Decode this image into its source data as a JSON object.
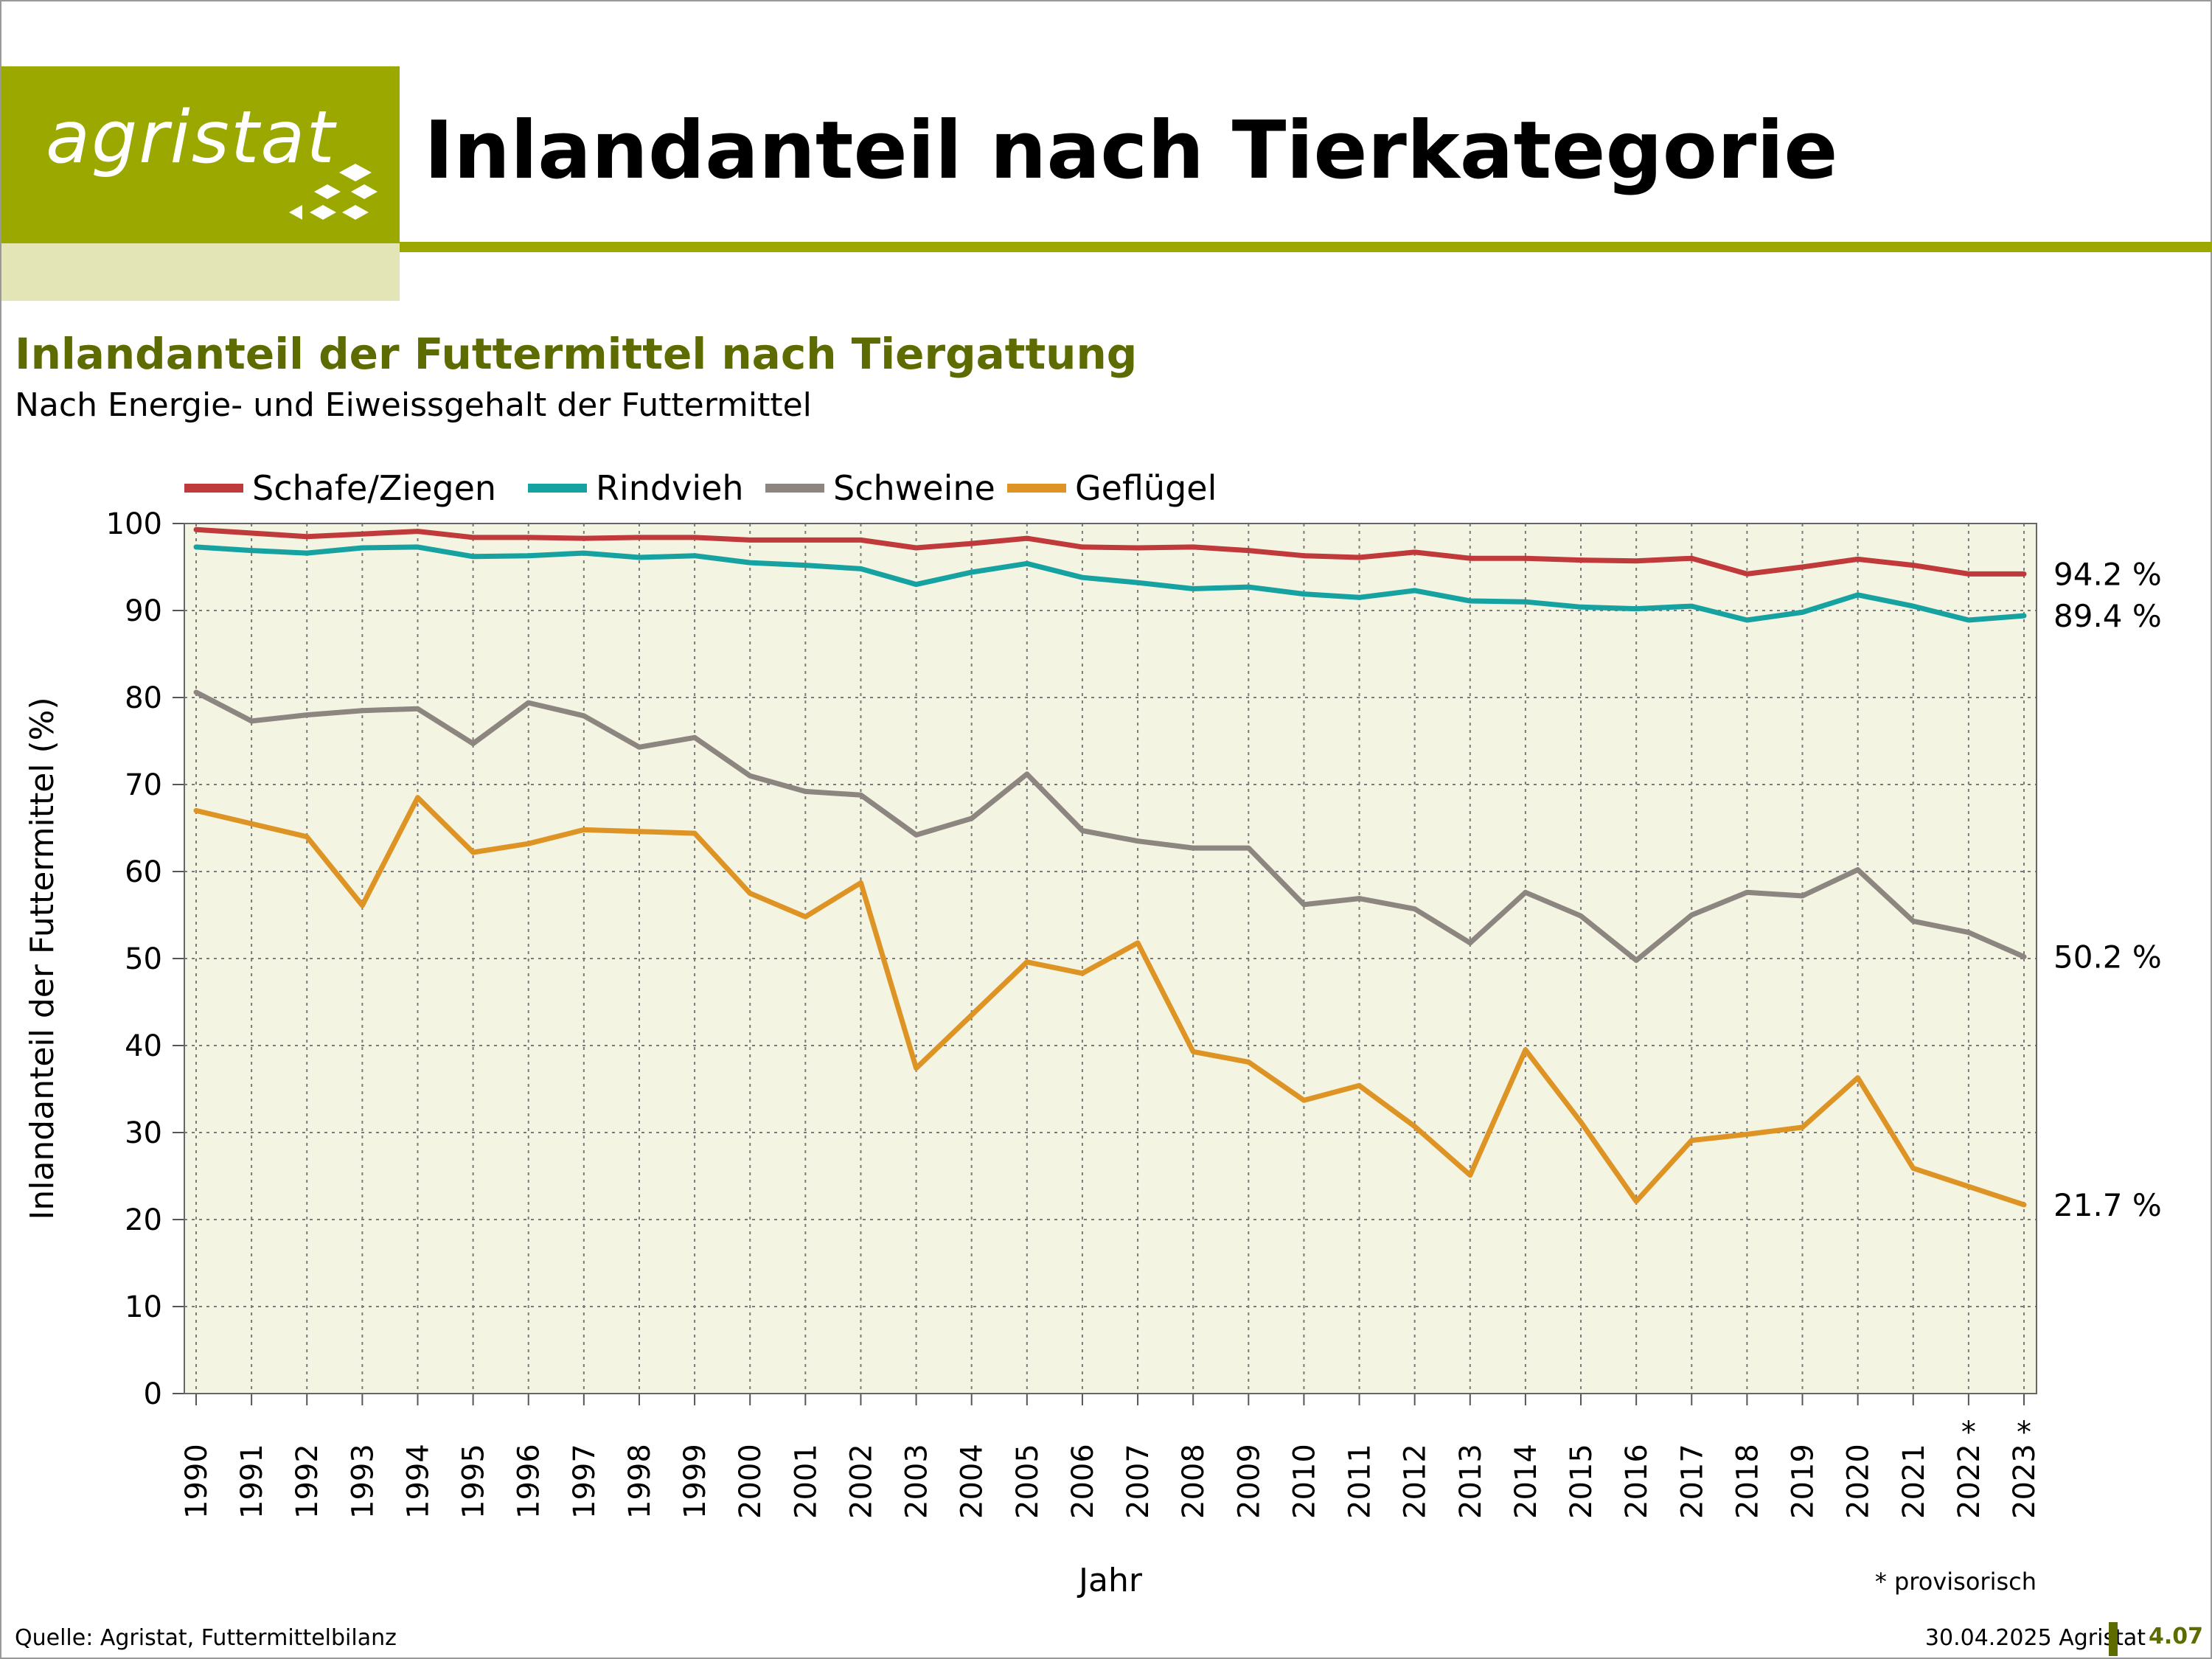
{
  "header": {
    "logo_text": "agristat",
    "page_title": "Inlandanteil nach Tierkategorie",
    "brand_color": "#9ba800"
  },
  "chart_title": "Inlandanteil der Futtermittel nach Tiergattung",
  "chart_subtitle": "Nach Energie- und Eiweissgehalt der Futtermittel",
  "note": "* provisorisch",
  "footer": {
    "source": "Quelle: Agristat, Futtermittelbilanz",
    "date": "30.04.2025 Agristat",
    "page": "4.07"
  },
  "chart_data": {
    "type": "line",
    "title": "Inlandanteil der Futtermittel nach Tiergattung",
    "subtitle": "Nach Energie- und Eiweissgehalt der Futtermittel",
    "xlabel": "Jahr",
    "ylabel": "Inlandanteil der Futtermittel (%)",
    "ylim": [
      0,
      100
    ],
    "yticks": [
      0,
      10,
      20,
      30,
      40,
      50,
      60,
      70,
      80,
      90,
      100
    ],
    "grid": true,
    "legend_position": "top",
    "background_color": "#f4f4e2",
    "x": [
      "1990",
      "1991",
      "1992",
      "1993",
      "1994",
      "1995",
      "1996",
      "1997",
      "1998",
      "1999",
      "2000",
      "2001",
      "2002",
      "2003",
      "2004",
      "2005",
      "2006",
      "2007",
      "2008",
      "2009",
      "2010",
      "2011",
      "2012",
      "2013",
      "2014",
      "2015",
      "2016",
      "2017",
      "2018",
      "2019",
      "2020",
      "2021",
      "2022",
      "2023"
    ],
    "provisional_marks": [
      "*",
      "*"
    ],
    "series": [
      {
        "name": "Schafe/Ziegen",
        "color": "#c0393b",
        "values": [
          99.3,
          98.9,
          98.5,
          98.8,
          99.1,
          98.4,
          98.4,
          98.3,
          98.4,
          98.4,
          98.1,
          98.1,
          98.1,
          97.2,
          97.7,
          98.3,
          97.3,
          97.2,
          97.3,
          96.9,
          96.3,
          96.1,
          96.7,
          96.0,
          96.0,
          95.8,
          95.7,
          96.0,
          94.2,
          95.0,
          95.9,
          95.2,
          94.2,
          94.2
        ],
        "end_label": "94.2 %"
      },
      {
        "name": "Rindvieh",
        "color": "#17a2a2",
        "values": [
          97.3,
          96.9,
          96.6,
          97.2,
          97.3,
          96.2,
          96.3,
          96.6,
          96.1,
          96.3,
          95.5,
          95.2,
          94.8,
          93.0,
          94.4,
          95.4,
          93.8,
          93.2,
          92.5,
          92.7,
          91.9,
          91.5,
          92.3,
          91.1,
          91.0,
          90.4,
          90.2,
          90.5,
          88.9,
          89.8,
          91.8,
          90.5,
          88.9,
          89.4
        ],
        "end_label": "89.4 %"
      },
      {
        "name": "Schweine",
        "color": "#8c8580",
        "values": [
          80.6,
          77.3,
          78.0,
          78.5,
          78.7,
          74.7,
          79.4,
          77.9,
          74.3,
          75.4,
          71.0,
          69.2,
          68.8,
          64.2,
          66.1,
          71.2,
          64.7,
          63.5,
          62.7,
          62.7,
          56.2,
          56.9,
          55.7,
          51.8,
          57.6,
          54.9,
          49.8,
          55.0,
          57.6,
          57.2,
          60.2,
          54.3,
          53.0,
          50.2
        ],
        "end_label": "50.2 %"
      },
      {
        "name": "Geflügel",
        "color": "#de9425",
        "values": [
          67.0,
          65.5,
          64.0,
          56.1,
          68.5,
          62.2,
          63.2,
          64.8,
          64.6,
          64.4,
          57.5,
          54.8,
          58.7,
          37.4,
          43.5,
          49.6,
          48.3,
          51.8,
          39.3,
          38.1,
          33.7,
          35.4,
          30.7,
          25.1,
          39.5,
          31.2,
          22.1,
          29.1,
          29.8,
          30.6,
          36.3,
          25.9,
          23.8,
          21.7
        ],
        "end_label": "21.7 %"
      }
    ]
  }
}
